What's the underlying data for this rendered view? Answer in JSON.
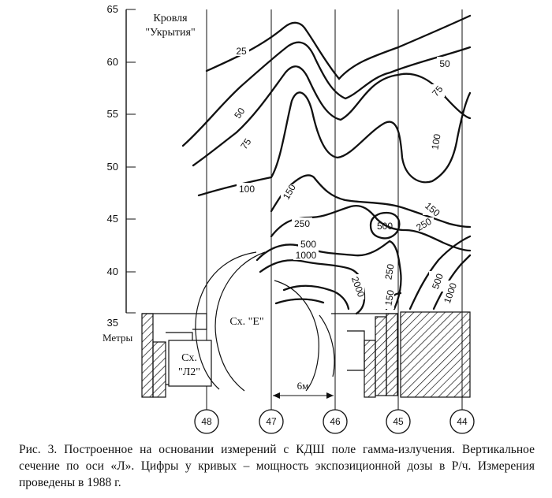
{
  "y_axis": {
    "ticks": [
      "65",
      "60",
      "55",
      "50",
      "45",
      "40",
      "35"
    ],
    "label": "Метры"
  },
  "roof_label_line1": "Кровля",
  "roof_label_line2": "\"Укрытия\"",
  "axes": [
    "48",
    "47",
    "46",
    "45",
    "44"
  ],
  "scale_label": "6м",
  "rooms": {
    "e": "Сх. \"Е\"",
    "l2_line1": "Сх.",
    "l2_line2": "\"Л2\""
  },
  "contour_labels": {
    "c25": "25",
    "c50a": "50",
    "c50b": "50",
    "c75a": "75",
    "c75b": "75",
    "c100a": "100",
    "c100b": "100",
    "c150a": "150",
    "c150b": "150",
    "c150c": "150",
    "c250a": "250",
    "c250b": "250",
    "c250c": "250",
    "c500a": "500",
    "c500b": "500",
    "c500c": "500",
    "c1000a": "1000",
    "c1000b": "1000",
    "c2000": "2000"
  },
  "caption": "Рис. 3. Построенное на основании измерений с КДШ поле гамма-излучения. Вертикальное сечение по оси «Л». Цифры у кривых – мощность экспозиционной дозы в Р/ч. Измерения проведены в 1988 г."
}
